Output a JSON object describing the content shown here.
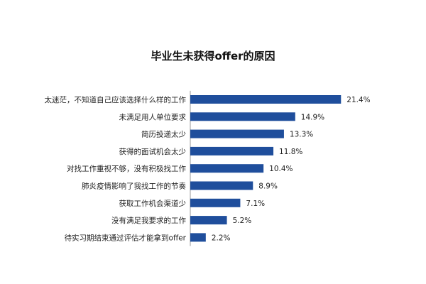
{
  "chart_data": {
    "type": "bar",
    "orientation": "horizontal",
    "title": "毕业生未获得offer的原因",
    "categories": [
      "太迷茫，不知道自己应该选择什么样的工作",
      "未满足用人单位要求",
      "简历投递太少",
      "获得的面试机会太少",
      "对找工作重视不够，没有积极找工作",
      "肺炎疫情影响了我找工作的节奏",
      "获取工作机会渠道少",
      "没有满足我要求的工作",
      "待实习期结束通过评估才能拿到offer"
    ],
    "values": [
      21.4,
      14.9,
      13.3,
      11.8,
      10.4,
      8.9,
      7.1,
      5.2,
      2.2
    ],
    "value_labels": [
      "21.4%",
      "14.9%",
      "13.3%",
      "11.8%",
      "10.4%",
      "8.9%",
      "7.1%",
      "5.2%",
      "2.2%"
    ],
    "xlim": [
      0,
      25
    ],
    "grid": false,
    "legend": "none",
    "bar_color": "#1f4e9c"
  }
}
